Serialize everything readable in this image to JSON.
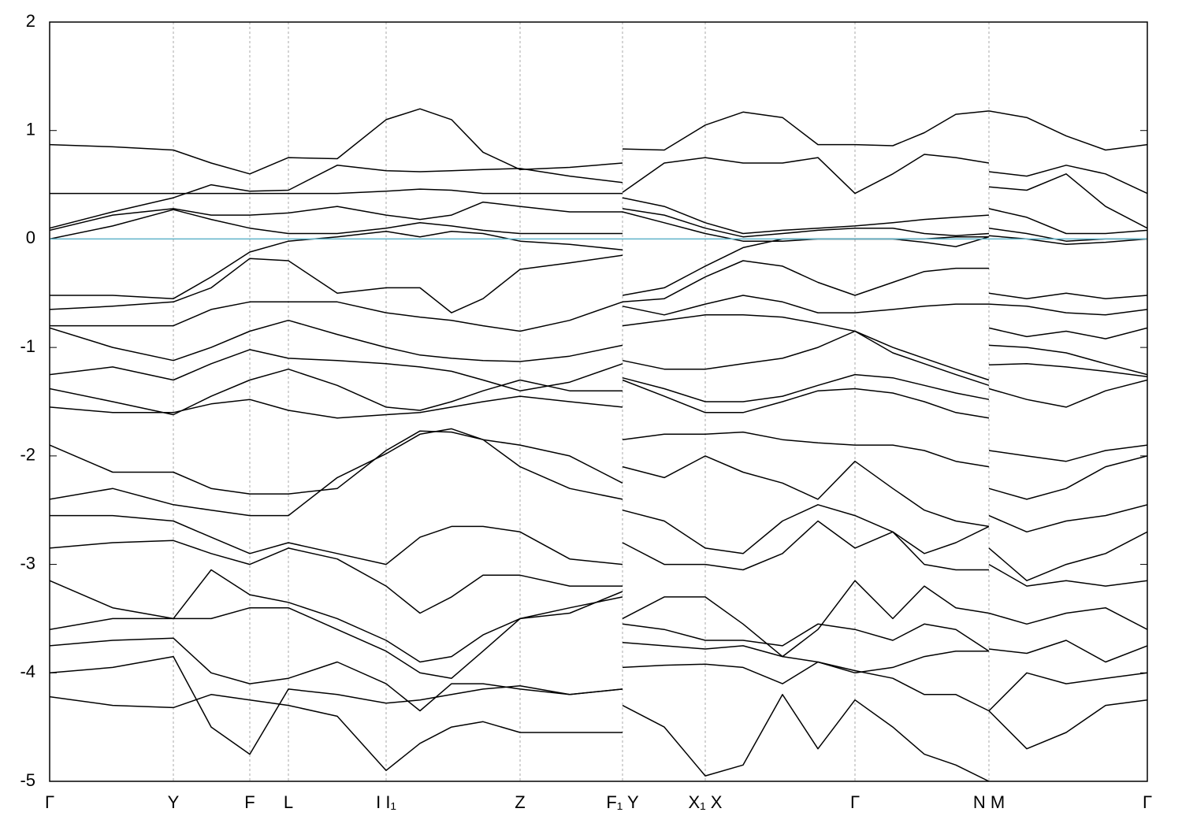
{
  "chart_data": {
    "type": "line",
    "color": "#000000",
    "hline": 0,
    "hline_color": "#5fb3c9",
    "grid": "x",
    "ylim": [
      -5,
      2
    ],
    "yticks": [
      -5,
      -4,
      -3,
      -2,
      -1,
      0,
      1,
      2
    ],
    "xlim": [
      0,
      13.93
    ],
    "xticks": [
      {
        "value": 0,
        "label": "Γ"
      },
      {
        "value": 1.57,
        "label": "Y"
      },
      {
        "value": 2.54,
        "label": "F"
      },
      {
        "value": 3.03,
        "label": "L"
      },
      {
        "value": 4.27,
        "label": "I  I₁"
      },
      {
        "value": 5.97,
        "label": "Z"
      },
      {
        "value": 7.27,
        "label": "F₁ Y"
      },
      {
        "value": 8.32,
        "label": "X₁ X"
      },
      {
        "value": 10.22,
        "label": "Γ"
      },
      {
        "value": 11.92,
        "label": "N M"
      },
      {
        "value": 13.93,
        "label": "Γ"
      }
    ],
    "x": [
      0,
      0.8,
      1.57,
      2.05,
      2.54,
      3.03,
      3.65,
      4.27,
      4.7,
      5.1,
      5.5,
      5.97,
      6.6,
      7.27,
      7.27,
      7.27,
      7.8,
      8.32,
      8.8,
      9.3,
      9.75,
      10.22,
      10.7,
      11.1,
      11.5,
      11.92,
      11.92,
      11.92,
      12.4,
      12.9,
      13.4,
      13.93
    ],
    "series": [
      {
        "values": [
          0.87,
          0.85,
          0.82,
          0.7,
          0.6,
          0.75,
          0.74,
          1.1,
          1.2,
          1.1,
          0.8,
          0.64,
          0.66,
          0.7,
          null,
          0.83,
          0.82,
          1.05,
          1.17,
          1.12,
          0.87,
          0.87,
          0.86,
          0.98,
          1.15,
          1.18,
          null,
          1.18,
          1.12,
          0.95,
          0.82,
          0.87
        ]
      },
      {
        "values": [
          0.42,
          0.42,
          0.42,
          0.42,
          0.42,
          0.42,
          0.42,
          0.44,
          0.46,
          0.45,
          0.42,
          0.42,
          0.42,
          0.42,
          null,
          0.43,
          0.7,
          0.75,
          0.7,
          0.7,
          0.75,
          0.42,
          0.6,
          0.78,
          0.75,
          0.7,
          null,
          0.62,
          0.58,
          0.68,
          0.6,
          0.42
        ]
      },
      {
        "values": [
          0.1,
          0.25,
          0.38,
          0.5,
          0.44,
          0.45,
          0.68,
          0.63,
          0.62,
          0.63,
          0.64,
          0.65,
          0.58,
          0.52,
          null,
          0.38,
          0.3,
          0.15,
          0.05,
          0.08,
          0.1,
          0.12,
          0.15,
          0.18,
          0.2,
          0.22,
          null,
          0.48,
          0.45,
          0.6,
          0.3,
          0.1
        ]
      },
      {
        "values": [
          0.08,
          0.22,
          0.28,
          0.22,
          0.22,
          0.24,
          0.3,
          0.22,
          0.18,
          0.22,
          0.34,
          0.3,
          0.25,
          0.25,
          null,
          0.28,
          0.22,
          0.1,
          0.02,
          0.05,
          0.08,
          0.1,
          0.1,
          0.05,
          0.03,
          0.05,
          null,
          0.28,
          0.2,
          0.05,
          0.05,
          0.08
        ]
      },
      {
        "values": [
          0,
          0.12,
          0.27,
          0.18,
          0.1,
          0.05,
          0.05,
          0.1,
          0.15,
          0.12,
          0.08,
          0.05,
          0.05,
          0.05,
          null,
          0.25,
          0.15,
          0.05,
          -0.02,
          -0.02,
          0,
          0,
          0,
          -0.03,
          -0.07,
          0.02,
          null,
          0.1,
          0.05,
          -0.02,
          0,
          0
        ]
      },
      {
        "values": [
          -0.52,
          -0.52,
          -0.55,
          -0.35,
          -0.12,
          -0.02,
          0.02,
          0.07,
          0.02,
          0.07,
          0.05,
          -0.02,
          -0.05,
          -0.1,
          null,
          -0.52,
          -0.45,
          -0.25,
          -0.08,
          0,
          0,
          0,
          0,
          0,
          0.02,
          0.02,
          null,
          0.03,
          0,
          -0.05,
          -0.03,
          0
        ]
      },
      {
        "values": [
          -0.65,
          -0.62,
          -0.58,
          -0.45,
          -0.18,
          -0.2,
          -0.5,
          -0.45,
          -0.45,
          -0.68,
          -0.55,
          -0.28,
          -0.22,
          -0.15,
          null,
          -0.58,
          -0.55,
          -0.35,
          -0.2,
          -0.25,
          -0.4,
          -0.52,
          -0.4,
          -0.3,
          -0.27,
          -0.27,
          null,
          -0.5,
          -0.55,
          -0.5,
          -0.55,
          -0.52
        ]
      },
      {
        "values": [
          -0.8,
          -0.8,
          -0.8,
          -0.65,
          -0.58,
          -0.58,
          -0.58,
          -0.68,
          -0.72,
          -0.75,
          -0.8,
          -0.85,
          -0.75,
          -0.58,
          null,
          -0.62,
          -0.7,
          -0.6,
          -0.52,
          -0.58,
          -0.68,
          -0.68,
          -0.65,
          -0.62,
          -0.6,
          -0.6,
          null,
          -0.6,
          -0.62,
          -0.68,
          -0.7,
          -0.65
        ]
      },
      {
        "values": [
          -0.82,
          -1.0,
          -1.12,
          -1.0,
          -0.85,
          -0.75,
          -0.88,
          -1.0,
          -1.07,
          -1.1,
          -1.12,
          -1.13,
          -1.08,
          -0.98,
          null,
          -0.8,
          -0.75,
          -0.7,
          -0.7,
          -0.72,
          -0.78,
          -0.85,
          -1.0,
          -1.1,
          -1.2,
          -1.3,
          null,
          -0.82,
          -0.9,
          -0.85,
          -0.92,
          -0.82
        ]
      },
      {
        "values": [
          -1.25,
          -1.18,
          -1.3,
          -1.15,
          -1.02,
          -1.1,
          -1.12,
          -1.15,
          -1.18,
          -1.22,
          -1.3,
          -1.4,
          -1.32,
          -1.15,
          null,
          -1.12,
          -1.2,
          -1.2,
          -1.15,
          -1.1,
          -1.0,
          -0.85,
          -1.05,
          -1.15,
          -1.25,
          -1.35,
          null,
          -0.98,
          -1.0,
          -1.05,
          -1.15,
          -1.25
        ]
      },
      {
        "values": [
          -1.38,
          -1.5,
          -1.62,
          -1.45,
          -1.3,
          -1.2,
          -1.35,
          -1.55,
          -1.58,
          -1.5,
          -1.4,
          -1.3,
          -1.4,
          -1.4,
          null,
          -1.28,
          -1.38,
          -1.5,
          -1.5,
          -1.45,
          -1.35,
          -1.25,
          -1.28,
          -1.35,
          -1.42,
          -1.48,
          null,
          -1.16,
          -1.15,
          -1.18,
          -1.22,
          -1.27
        ]
      },
      {
        "values": [
          -1.55,
          -1.6,
          -1.6,
          -1.52,
          -1.48,
          -1.58,
          -1.65,
          -1.62,
          -1.6,
          -1.55,
          -1.5,
          -1.45,
          -1.5,
          -1.55,
          null,
          -1.3,
          -1.45,
          -1.6,
          -1.6,
          -1.5,
          -1.4,
          -1.38,
          -1.42,
          -1.5,
          -1.6,
          -1.65,
          null,
          -1.38,
          -1.48,
          -1.55,
          -1.4,
          -1.3
        ]
      },
      {
        "values": [
          -1.9,
          -2.15,
          -2.15,
          -2.3,
          -2.35,
          -2.35,
          -2.3,
          -1.95,
          -1.77,
          -1.78,
          -1.85,
          -1.9,
          -2.0,
          -2.25,
          null,
          -1.85,
          -1.8,
          -1.8,
          -1.78,
          -1.85,
          -1.88,
          -1.9,
          -1.9,
          -1.95,
          -2.05,
          -2.1,
          null,
          -1.95,
          -2.0,
          -2.05,
          -1.95,
          -1.9
        ]
      },
      {
        "values": [
          -2.4,
          -2.3,
          -2.45,
          -2.5,
          -2.55,
          -2.55,
          -2.2,
          -1.98,
          -1.8,
          -1.75,
          -1.85,
          -2.1,
          -2.3,
          -2.4,
          null,
          -2.1,
          -2.2,
          -2.0,
          -2.15,
          -2.25,
          -2.4,
          -2.05,
          -2.3,
          -2.5,
          -2.6,
          -2.65,
          null,
          -2.3,
          -2.4,
          -2.3,
          -2.1,
          -2.0
        ]
      },
      {
        "values": [
          -2.55,
          -2.55,
          -2.6,
          -2.75,
          -2.9,
          -2.8,
          -2.9,
          -3.0,
          -2.75,
          -2.65,
          -2.65,
          -2.7,
          -2.95,
          -3.0,
          null,
          -2.5,
          -2.6,
          -2.85,
          -2.9,
          -2.6,
          -2.45,
          -2.55,
          -2.7,
          -2.9,
          -2.8,
          -2.65,
          null,
          -2.55,
          -2.7,
          -2.6,
          -2.55,
          -2.45
        ]
      },
      {
        "values": [
          -2.85,
          -2.8,
          -2.78,
          -2.9,
          -3.0,
          -2.85,
          -2.95,
          -3.2,
          -3.45,
          -3.3,
          -3.1,
          -3.1,
          -3.2,
          -3.2,
          null,
          -2.8,
          -3.0,
          -3.0,
          -3.05,
          -2.9,
          -2.6,
          -2.85,
          -2.7,
          -3.0,
          -3.05,
          -3.05,
          null,
          -2.85,
          -3.15,
          -3.0,
          -2.9,
          -2.7
        ]
      },
      {
        "values": [
          -3.15,
          -3.4,
          -3.5,
          -3.05,
          -3.28,
          -3.35,
          -3.5,
          -3.7,
          -3.9,
          -3.85,
          -3.65,
          -3.5,
          -3.45,
          -3.25,
          null,
          -3.5,
          -3.3,
          -3.3,
          -3.55,
          -3.85,
          -3.6,
          -3.15,
          -3.5,
          -3.2,
          -3.4,
          -3.45,
          null,
          -3.0,
          -3.2,
          -3.15,
          -3.2,
          -3.15
        ]
      },
      {
        "values": [
          -3.6,
          -3.5,
          -3.5,
          -3.5,
          -3.4,
          -3.4,
          -3.6,
          -3.8,
          -4.0,
          -4.05,
          -3.8,
          -3.5,
          -3.4,
          -3.3,
          null,
          -3.55,
          -3.6,
          -3.7,
          -3.7,
          -3.75,
          -3.55,
          -3.6,
          -3.7,
          -3.55,
          -3.6,
          -3.8,
          null,
          -3.45,
          -3.55,
          -3.45,
          -3.4,
          -3.6
        ]
      },
      {
        "values": [
          -3.75,
          -3.7,
          -3.68,
          -4.0,
          -4.1,
          -4.05,
          -3.9,
          -4.1,
          -4.35,
          -4.1,
          -4.1,
          -4.15,
          -4.2,
          -4.15,
          null,
          -3.72,
          -3.75,
          -3.78,
          -3.75,
          -3.85,
          -3.9,
          -4.0,
          -3.95,
          -3.85,
          -3.8,
          -3.8,
          null,
          -3.78,
          -3.82,
          -3.7,
          -3.9,
          -3.75
        ]
      },
      {
        "values": [
          -4.0,
          -3.95,
          -3.85,
          -4.5,
          -4.75,
          -4.15,
          -4.2,
          -4.28,
          -4.25,
          -4.2,
          -4.15,
          -4.12,
          -4.2,
          -4.15,
          null,
          -3.95,
          -3.93,
          -3.92,
          -3.95,
          -4.1,
          -3.9,
          -3.98,
          -4.05,
          -4.2,
          -4.2,
          -4.35,
          null,
          -4.35,
          -4.0,
          -4.1,
          -4.05,
          -4.0
        ]
      },
      {
        "values": [
          -4.22,
          -4.3,
          -4.32,
          -4.2,
          -4.25,
          -4.3,
          -4.4,
          -4.9,
          -4.65,
          -4.5,
          -4.45,
          -4.55,
          -4.55,
          -4.55,
          null,
          -4.3,
          -4.5,
          -4.95,
          -4.85,
          -4.2,
          -4.7,
          -4.25,
          -4.5,
          -4.75,
          -4.85,
          -5.0,
          null,
          -4.35,
          -4.7,
          -4.55,
          -4.3,
          -4.25
        ]
      }
    ]
  }
}
